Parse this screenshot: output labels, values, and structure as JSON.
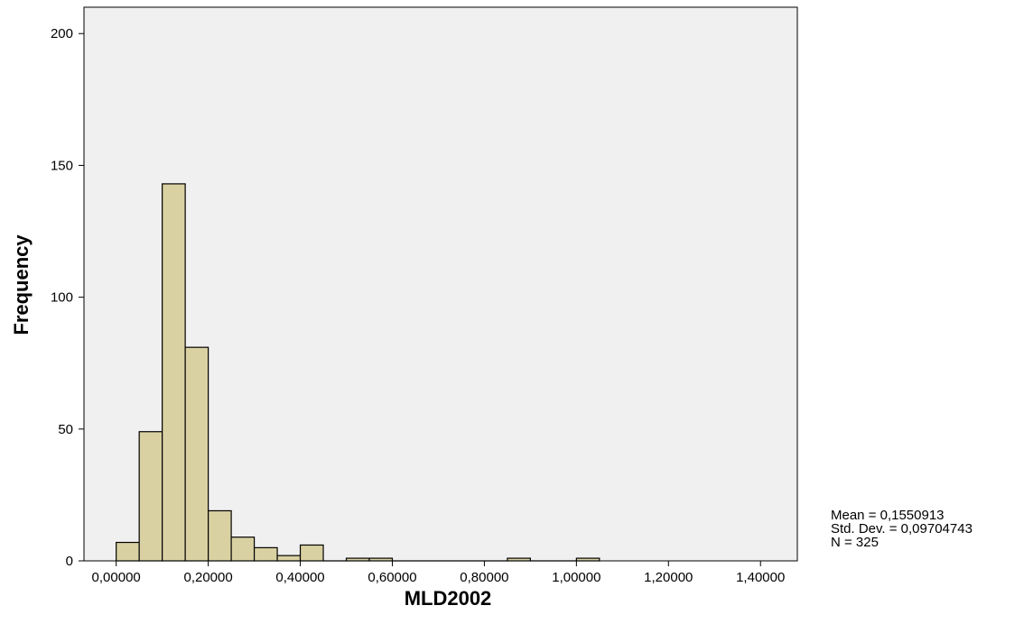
{
  "chart_data": {
    "type": "bar",
    "subtype": "histogram",
    "xlabel": "MLD2002",
    "ylabel": "Frequency",
    "xlim": [
      -0.07,
      1.48
    ],
    "ylim": [
      0,
      210
    ],
    "x_ticks": [
      0,
      0.2,
      0.4,
      0.6,
      0.8,
      1.0,
      1.2,
      1.4
    ],
    "x_tick_labels": [
      "0,00000",
      "0,20000",
      "0,40000",
      "0,60000",
      "0,80000",
      "1,00000",
      "1,20000",
      "1,40000"
    ],
    "y_ticks": [
      0,
      50,
      100,
      150,
      200
    ],
    "y_tick_labels": [
      "0",
      "50",
      "100",
      "150",
      "200"
    ],
    "bin_width": 0.05,
    "bin_starts": [
      0.0,
      0.05,
      0.1,
      0.15,
      0.2,
      0.25,
      0.3,
      0.35,
      0.4,
      0.45,
      0.5,
      0.55,
      0.6,
      0.65,
      0.7,
      0.75,
      0.8,
      0.85,
      0.9,
      0.95,
      1.0
    ],
    "values": [
      7,
      49,
      143,
      81,
      19,
      9,
      5,
      2,
      6,
      0,
      1,
      1,
      0,
      0,
      0,
      0,
      0,
      1,
      0,
      0,
      1
    ],
    "bar_color": "#d9d1a2",
    "plot_background": "#f0f0f0",
    "grid": false,
    "stats": {
      "mean": "Mean = 0,1550913",
      "std_dev": "Std. Dev. = 0,09704743",
      "n": "N = 325"
    }
  }
}
